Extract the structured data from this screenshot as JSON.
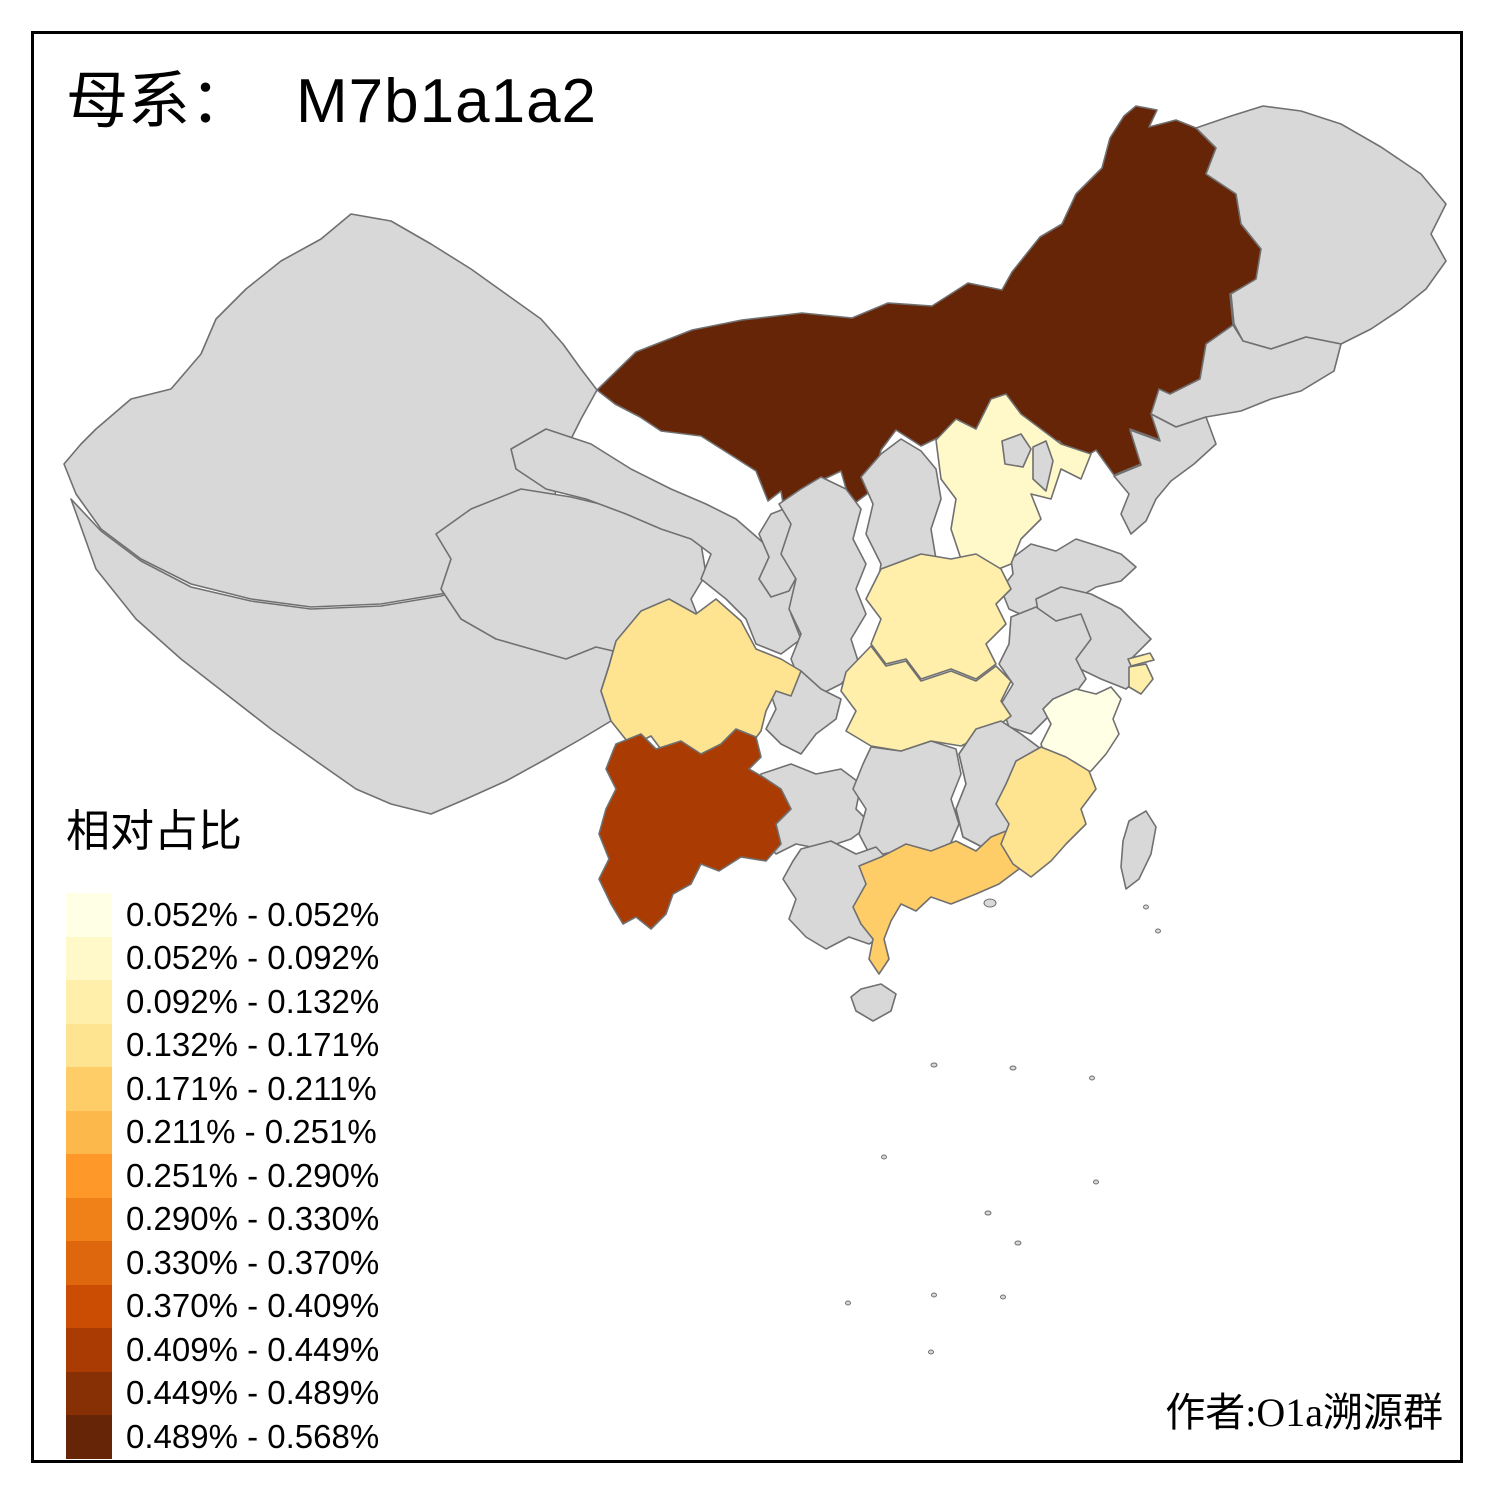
{
  "title": {
    "prefix": "母系：",
    "haplogroup": "M7b1a1a2"
  },
  "legend": {
    "title": "相对占比",
    "classes": [
      {
        "range": "0.052% - 0.052%",
        "color": "#FFFFE5"
      },
      {
        "range": "0.052% - 0.092%",
        "color": "#FFF8C8"
      },
      {
        "range": "0.092% - 0.132%",
        "color": "#FFEFAA"
      },
      {
        "range": "0.132% - 0.171%",
        "color": "#FEE391"
      },
      {
        "range": "0.171% - 0.211%",
        "color": "#FECD68"
      },
      {
        "range": "0.211% - 0.251%",
        "color": "#FDB84C"
      },
      {
        "range": "0.251% - 0.290%",
        "color": "#FE9929"
      },
      {
        "range": "0.290% - 0.330%",
        "color": "#F08018"
      },
      {
        "range": "0.330% - 0.370%",
        "color": "#DE660D"
      },
      {
        "range": "0.370% - 0.409%",
        "color": "#CB4D03"
      },
      {
        "range": "0.409% - 0.449%",
        "color": "#AA3C03"
      },
      {
        "range": "0.449% - 0.489%",
        "color": "#872F05"
      },
      {
        "range": "0.489% - 0.568%",
        "color": "#662506"
      }
    ]
  },
  "attribution": "作者:O1a溯源群",
  "map": {
    "base_fill": "#D8D8D8",
    "border_color": "#707070",
    "background": "#FFFFFF",
    "colored_regions": [
      {
        "region": "inner-mongolia",
        "class_index": 12
      },
      {
        "region": "yunnan",
        "class_index": 10
      },
      {
        "region": "guangdong",
        "class_index": 4
      },
      {
        "region": "sichuan",
        "class_index": 3
      },
      {
        "region": "fujian",
        "class_index": 3
      },
      {
        "region": "henan",
        "class_index": 2
      },
      {
        "region": "hubei",
        "class_index": 2
      },
      {
        "region": "shanghai",
        "class_index": 2
      },
      {
        "region": "hebei",
        "class_index": 1
      },
      {
        "region": "zhejiang",
        "class_index": 0
      }
    ]
  }
}
